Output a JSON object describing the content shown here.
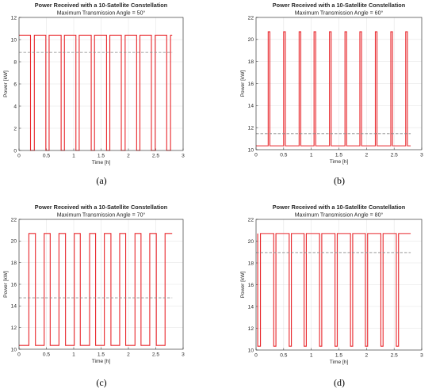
{
  "chart_data": [
    {
      "type": "line",
      "title": "Power Received with a 10-Satellite Constellation",
      "subtitle": "Maximum Transmission Angle = 50°",
      "xlabel": "Time [h]",
      "ylabel": "Power [kW]",
      "xlim": [
        0,
        3
      ],
      "ylim": [
        0,
        12
      ],
      "xticks": [
        "0",
        "0.5",
        "1",
        "1.5",
        "2",
        "2.5",
        "3"
      ],
      "yticks": [
        "0",
        "2",
        "4",
        "6",
        "8",
        "10",
        "12"
      ],
      "grid": true,
      "caption": "(a)",
      "series": [
        {
          "type": "step",
          "color": "#e8262b",
          "x": [
            0,
            0.21,
            0.21,
            0.28,
            0.28,
            0.49,
            0.49,
            0.55,
            0.55,
            0.77,
            0.77,
            0.83,
            0.83,
            1.04,
            1.04,
            1.1,
            1.1,
            1.32,
            1.32,
            1.38,
            1.38,
            1.6,
            1.6,
            1.66,
            1.66,
            1.87,
            1.87,
            1.94,
            1.94,
            2.15,
            2.15,
            2.21,
            2.21,
            2.42,
            2.42,
            2.49,
            2.49,
            2.7,
            2.7,
            2.77,
            2.77,
            2.8
          ],
          "y": [
            10.4,
            10.4,
            0,
            0,
            10.4,
            10.4,
            0,
            0,
            10.4,
            10.4,
            0,
            0,
            10.4,
            10.4,
            0,
            0,
            10.4,
            10.4,
            0,
            0,
            10.4,
            10.4,
            0,
            0,
            10.4,
            10.4,
            0,
            0,
            10.4,
            10.4,
            0,
            0,
            10.4,
            10.4,
            0,
            0,
            10.4,
            10.4,
            0,
            0,
            10.4,
            10.4
          ]
        },
        {
          "type": "hline",
          "color": "#8a8a8a",
          "dashed": true,
          "x": [
            0,
            2.8
          ],
          "y": [
            8.85,
            8.85
          ]
        }
      ]
    },
    {
      "type": "line",
      "title": "Power Received with a 10-Satellite Constellation",
      "subtitle": "Maximum Transmission Angle = 60°",
      "xlabel": "Time [h]",
      "ylabel": "Power [kW]",
      "xlim": [
        0,
        3
      ],
      "ylim": [
        10,
        22
      ],
      "xticks": [
        "0",
        "0.5",
        "1",
        "1.5",
        "2",
        "2.5",
        "3"
      ],
      "yticks": [
        "10",
        "12",
        "14",
        "16",
        "18",
        "20",
        "22"
      ],
      "grid": true,
      "caption": "(b)",
      "series": [
        {
          "type": "step",
          "color": "#e8262b",
          "x": [
            0,
            0.22,
            0.22,
            0.25,
            0.25,
            0.5,
            0.5,
            0.53,
            0.53,
            0.78,
            0.78,
            0.81,
            0.81,
            1.05,
            1.05,
            1.08,
            1.08,
            1.33,
            1.33,
            1.36,
            1.36,
            1.61,
            1.61,
            1.64,
            1.64,
            1.88,
            1.88,
            1.91,
            1.91,
            2.16,
            2.16,
            2.19,
            2.19,
            2.44,
            2.44,
            2.47,
            2.47,
            2.71,
            2.71,
            2.74,
            2.74,
            2.8
          ],
          "y": [
            10.35,
            10.35,
            20.7,
            20.7,
            10.35,
            10.35,
            20.7,
            20.7,
            10.35,
            10.35,
            20.7,
            20.7,
            10.35,
            10.35,
            20.7,
            20.7,
            10.35,
            10.35,
            20.7,
            20.7,
            10.35,
            10.35,
            20.7,
            20.7,
            10.35,
            10.35,
            20.7,
            20.7,
            10.35,
            10.35,
            20.7,
            20.7,
            10.35,
            10.35,
            20.7,
            20.7,
            10.35,
            10.35,
            20.7,
            20.7,
            10.35,
            10.35
          ]
        },
        {
          "type": "hline",
          "color": "#8a8a8a",
          "dashed": true,
          "x": [
            0,
            2.8
          ],
          "y": [
            11.45,
            11.45
          ]
        }
      ]
    },
    {
      "type": "line",
      "title": "Power Received with a 10-Satellite Constellation",
      "subtitle": "Maximum Transmission Angle = 70°",
      "xlabel": "Time [h]",
      "ylabel": "Power [kW]",
      "xlim": [
        0,
        3
      ],
      "ylim": [
        10,
        22
      ],
      "xticks": [
        "0",
        "0.5",
        "1",
        "1.5",
        "2",
        "2.5",
        "3"
      ],
      "yticks": [
        "10",
        "12",
        "14",
        "16",
        "18",
        "20",
        "22"
      ],
      "grid": true,
      "caption": "(c)",
      "series": [
        {
          "type": "step",
          "color": "#e8262b",
          "x": [
            0,
            0.18,
            0.18,
            0.3,
            0.3,
            0.46,
            0.46,
            0.57,
            0.57,
            0.73,
            0.73,
            0.85,
            0.85,
            1.01,
            1.01,
            1.12,
            1.12,
            1.29,
            1.29,
            1.4,
            1.4,
            1.56,
            1.56,
            1.68,
            1.68,
            1.84,
            1.84,
            1.95,
            1.95,
            2.12,
            2.12,
            2.23,
            2.23,
            2.39,
            2.39,
            2.51,
            2.51,
            2.67,
            2.67,
            2.78,
            2.78,
            2.8
          ],
          "y": [
            10.35,
            10.35,
            20.7,
            20.7,
            10.35,
            10.35,
            20.7,
            20.7,
            10.35,
            10.35,
            20.7,
            20.7,
            10.35,
            10.35,
            20.7,
            20.7,
            10.35,
            10.35,
            20.7,
            20.7,
            10.35,
            10.35,
            20.7,
            20.7,
            10.35,
            10.35,
            20.7,
            20.7,
            10.35,
            10.35,
            20.7,
            20.7,
            10.35,
            10.35,
            20.7,
            20.7,
            10.35,
            10.35,
            20.7,
            20.7,
            20.7,
            20.7
          ]
        },
        {
          "type": "hline",
          "color": "#8a8a8a",
          "dashed": true,
          "x": [
            0,
            2.8
          ],
          "y": [
            14.75,
            14.75
          ]
        }
      ]
    },
    {
      "type": "line",
      "title": "Power Received with a 10-Satellite Constellation",
      "subtitle": "Maximum Transmission Angle = 80°",
      "xlabel": "Time [h]",
      "ylabel": "Power [kW]",
      "xlim": [
        0,
        3
      ],
      "ylim": [
        10,
        22
      ],
      "xticks": [
        "0",
        "0.5",
        "1",
        "1.5",
        "2",
        "2.5",
        "3"
      ],
      "yticks": [
        "10",
        "12",
        "14",
        "16",
        "18",
        "20",
        "22"
      ],
      "grid": true,
      "caption": "(d)",
      "series": [
        {
          "type": "step",
          "color": "#e8262b",
          "x": [
            0.03,
            0.03,
            0.08,
            0.08,
            0.32,
            0.32,
            0.36,
            0.36,
            0.6,
            0.6,
            0.64,
            0.64,
            0.87,
            0.87,
            0.91,
            0.91,
            1.15,
            1.15,
            1.19,
            1.19,
            1.43,
            1.43,
            1.47,
            1.47,
            1.71,
            1.71,
            1.75,
            1.75,
            1.98,
            1.98,
            2.02,
            2.02,
            2.26,
            2.26,
            2.3,
            2.3,
            2.54,
            2.54,
            2.58,
            2.58,
            2.8
          ],
          "y": [
            20.7,
            10.35,
            10.35,
            20.7,
            20.7,
            10.35,
            10.35,
            20.7,
            20.7,
            10.35,
            10.35,
            20.7,
            20.7,
            10.35,
            10.35,
            20.7,
            20.7,
            10.35,
            10.35,
            20.7,
            20.7,
            10.35,
            10.35,
            20.7,
            20.7,
            10.35,
            10.35,
            20.7,
            20.7,
            10.35,
            10.35,
            20.7,
            20.7,
            10.35,
            10.35,
            20.7,
            20.7,
            10.35,
            10.35,
            20.7,
            20.7
          ]
        },
        {
          "type": "hline",
          "color": "#8a8a8a",
          "dashed": true,
          "x": [
            0,
            2.8
          ],
          "y": [
            18.95,
            18.95
          ]
        }
      ]
    }
  ]
}
